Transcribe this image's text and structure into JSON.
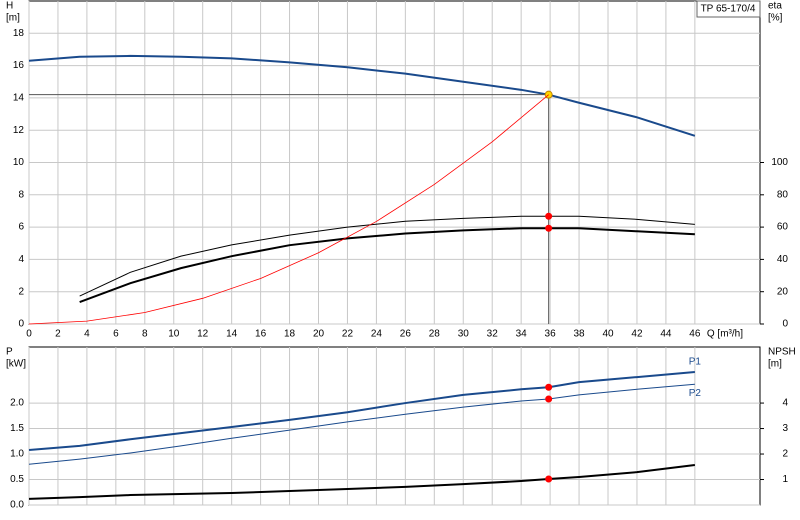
{
  "chart_data": [
    {
      "type": "line",
      "legend_box": "TP 65-170/4",
      "ylabel": [
        "H",
        "[m]"
      ],
      "y2label": [
        "eta",
        "[%]"
      ],
      "xlabel": "Q [m³/h]",
      "xlim": [
        0,
        50.5
      ],
      "xticks": [
        0,
        2,
        4,
        6,
        8,
        10,
        12,
        14,
        16,
        18,
        20,
        22,
        24,
        26,
        28,
        30,
        32,
        34,
        36,
        38,
        40,
        42,
        44,
        46
      ],
      "ylim": [
        0,
        20
      ],
      "yticks": [
        0,
        2,
        4,
        6,
        8,
        10,
        12,
        14,
        16,
        18
      ],
      "y2lim": [
        0,
        200
      ],
      "y2ticks": [
        0,
        20,
        40,
        60,
        80,
        100
      ],
      "grid": true,
      "x": [
        0,
        3.5,
        7,
        10.5,
        14,
        18,
        22,
        26,
        30,
        34,
        35.9,
        38,
        42,
        46
      ],
      "series": [
        {
          "color": "#1a4a8c",
          "width": 2,
          "values": [
            16.3,
            16.55,
            16.6,
            16.55,
            16.45,
            16.2,
            15.9,
            15.5,
            15.0,
            14.5,
            14.2,
            13.7,
            12.8,
            11.65
          ],
          "marker_index": 10,
          "marker_color": "#ffd700",
          "crosshair": true
        },
        {
          "color": "#000000",
          "width": 1,
          "axis": "y2",
          "values": [
            null,
            17.3,
            32,
            42,
            49,
            55,
            60,
            63.6,
            65.4,
            66.7,
            66.7,
            66.7,
            64.8,
            61.7
          ],
          "marker_index": 10,
          "marker_color": "#ff0000"
        },
        {
          "color": "#000000",
          "width": 2,
          "axis": "y2",
          "values": [
            null,
            13.6,
            25.3,
            34.6,
            42,
            48.8,
            53,
            56,
            58,
            59.3,
            59.3,
            59.3,
            57.4,
            55.6
          ],
          "marker_index": 10,
          "marker_color": "#ff0000"
        },
        {
          "color": "#ff0000",
          "width": 0.8,
          "x": [
            0,
            4,
            8,
            12,
            16,
            20,
            24,
            28,
            32,
            35.9
          ],
          "values": [
            0,
            0.18,
            0.71,
            1.59,
            2.82,
            4.41,
            6.35,
            8.64,
            11.28,
            14.2
          ]
        }
      ]
    },
    {
      "type": "line",
      "ylabel": [
        "P",
        "[kW]"
      ],
      "y2label": [
        "NPSH",
        "[m]"
      ],
      "xlim": [
        0,
        50.5
      ],
      "xticks": [
        0,
        2,
        4,
        6,
        8,
        10,
        12,
        14,
        16,
        18,
        20,
        22,
        24,
        26,
        28,
        30,
        32,
        34,
        36,
        38,
        40,
        42,
        44,
        46
      ],
      "ylim": [
        0,
        3.1
      ],
      "yticks": [
        {
          "value": 0,
          "label": "0.0"
        },
        0.5,
        {
          "value": 1,
          "label": "1.0"
        },
        1.5,
        {
          "value": 2,
          "label": "2.0"
        }
      ],
      "y2lim": [
        0,
        6.2
      ],
      "y2ticks": [
        1,
        2,
        3,
        4
      ],
      "grid": true,
      "x": [
        0,
        3.5,
        7,
        10.5,
        14,
        18,
        22,
        26,
        30,
        34,
        35.9,
        38,
        42,
        46
      ],
      "series": [
        {
          "name": "P1",
          "color": "#1a4a8c",
          "width": 2,
          "values": [
            1.08,
            1.16,
            1.29,
            1.41,
            1.53,
            1.67,
            1.82,
            2.0,
            2.16,
            2.27,
            2.31,
            2.41,
            2.51,
            2.61
          ],
          "marker_index": 10,
          "marker_color": "#ff0000"
        },
        {
          "name": "P2",
          "color": "#1a4a8c",
          "width": 1,
          "values": [
            0.8,
            0.9,
            1.02,
            1.16,
            1.31,
            1.47,
            1.63,
            1.78,
            1.92,
            2.04,
            2.08,
            2.16,
            2.27,
            2.37
          ],
          "marker_index": 10,
          "marker_color": "#ff0000"
        },
        {
          "color": "#000000",
          "width": 2,
          "axis": "y2",
          "values": [
            0.24,
            0.31,
            0.39,
            0.43,
            0.47,
            0.55,
            0.63,
            0.71,
            0.82,
            0.94,
            1.02,
            1.1,
            1.29,
            1.57
          ],
          "marker_index": 10,
          "marker_color": "#ff0000"
        }
      ]
    }
  ]
}
